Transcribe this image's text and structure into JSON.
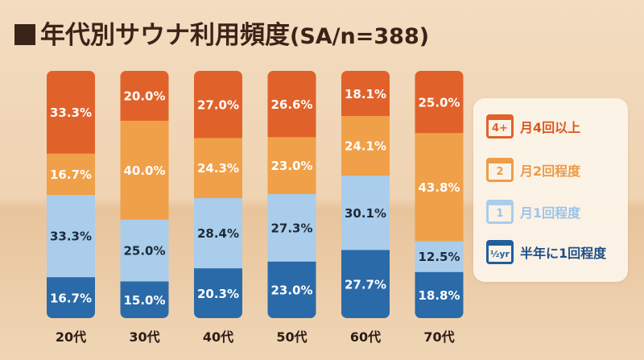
{
  "title": "年代別サウナ利用頻度",
  "subtitle": "(SA/n=388)",
  "chart_data": {
    "type": "bar",
    "stacked": true,
    "orientation": "vertical",
    "unit": "%",
    "categories": [
      "20代",
      "30代",
      "40代",
      "50代",
      "60代",
      "70代"
    ],
    "series": [
      {
        "name": "半年に1回程度",
        "icon_text": "½yr",
        "color": "#2a6aa8",
        "values": [
          16.7,
          15.0,
          20.3,
          23.0,
          27.7,
          18.8
        ]
      },
      {
        "name": "月1回程度",
        "icon_text": "1",
        "color": "#a9cdeb",
        "values": [
          33.3,
          25.0,
          28.4,
          27.3,
          30.1,
          12.5
        ]
      },
      {
        "name": "月2回程度",
        "icon_text": "2",
        "color": "#f0a048",
        "values": [
          16.7,
          40.0,
          24.3,
          23.0,
          24.1,
          43.8
        ]
      },
      {
        "name": "月4回以上",
        "icon_text": "4+",
        "color": "#e0622a",
        "values": [
          33.3,
          20.0,
          27.0,
          26.6,
          18.1,
          25.0
        ]
      }
    ],
    "legend_placement": "right",
    "grid": false
  }
}
